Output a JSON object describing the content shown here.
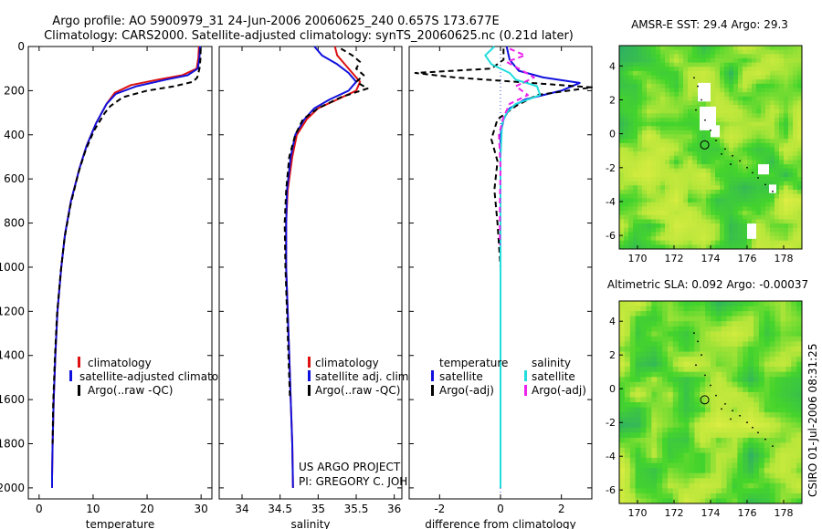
{
  "header": {
    "line1": "Argo profile: AO 5900979_31 24-Jun-2006 20060625_240 0.657S 173.677E",
    "line2": "Climatology: CARS2000. Satellite-adjusted climatology: synTS_20060625.nc (0.21d later)"
  },
  "credit": {
    "line1": "US ARGO PROJECT",
    "line2": "PI: GREGORY C. JOHNSON"
  },
  "side_stamp": "CSIRO 01-Jul-2006 08:31:25",
  "colors": {
    "climatology": "#dd1111",
    "satellite": "#1111dd",
    "argo": "#000000",
    "sal_satellite": "#22dddd",
    "sal_argo": "#ee22ee",
    "map_yellow": "#d8f03a",
    "map_green": "#3cd22c",
    "map_teal": "#2aa06a"
  },
  "chart_data": [
    {
      "type": "line",
      "id": "temperature",
      "xlabel": "temperature",
      "xlim": [
        -2,
        32
      ],
      "xticks": [
        0,
        10,
        20,
        30
      ],
      "ylim": [
        2050,
        0
      ],
      "yticks": [
        0,
        200,
        400,
        600,
        800,
        1000,
        1200,
        1400,
        1600,
        1800,
        2000
      ],
      "legend": [
        "climatology",
        "satellite-adjusted climatology",
        "Argo(..raw -QC)"
      ],
      "series": [
        {
          "name": "climatology",
          "style": "solid",
          "color": "#dd1111",
          "x": [
            29.6,
            29.5,
            29.2,
            26.5,
            22,
            17,
            14,
            12.5,
            10.5,
            8.8,
            7.5,
            5.9,
            4.8,
            4.1,
            3.4,
            3.0,
            2.7,
            2.5,
            2.4,
            2.4
          ],
          "y": [
            0,
            50,
            100,
            130,
            150,
            175,
            210,
            260,
            350,
            450,
            550,
            700,
            850,
            1000,
            1200,
            1400,
            1600,
            1800,
            1950,
            2000
          ]
        },
        {
          "name": "satellite-adjusted climatology",
          "style": "solid",
          "color": "#1111dd",
          "x": [
            29.8,
            29.7,
            29.4,
            27.5,
            23.5,
            18,
            14.2,
            12.5,
            10.5,
            8.8,
            7.5,
            5.9,
            4.8,
            4.1,
            3.4,
            3.0,
            2.7,
            2.5,
            2.4,
            2.4
          ],
          "y": [
            0,
            50,
            100,
            130,
            150,
            180,
            215,
            260,
            350,
            450,
            550,
            700,
            850,
            1000,
            1200,
            1400,
            1600,
            1800,
            1950,
            2000
          ]
        },
        {
          "name": "Argo(..raw -QC)",
          "style": "dashed",
          "color": "#000000",
          "x": [
            29.9,
            29.9,
            29.7,
            29.3,
            28.5,
            25,
            20,
            15.5,
            13.2,
            12.2,
            10.2,
            8.6,
            7.3,
            5.8,
            4.7,
            4.0,
            3.3,
            2.9,
            2.6,
            2.5
          ],
          "y": [
            10,
            50,
            100,
            140,
            160,
            180,
            200,
            230,
            270,
            300,
            380,
            470,
            570,
            720,
            870,
            1020,
            1220,
            1420,
            1620,
            1800
          ]
        }
      ]
    },
    {
      "type": "line",
      "id": "salinity",
      "xlabel": "salinity",
      "xlim": [
        33.7,
        36.1
      ],
      "xticks": [
        34,
        34.5,
        35,
        35.5,
        36
      ],
      "ylim": [
        2050,
        0
      ],
      "legend": [
        "climatology",
        "satellite adj. clim.",
        "Argo(..raw -QC)"
      ],
      "series": [
        {
          "name": "climatology",
          "style": "solid",
          "color": "#dd1111",
          "x": [
            35.22,
            35.25,
            35.35,
            35.45,
            35.55,
            35.5,
            35.25,
            35.0,
            34.85,
            34.72,
            34.66,
            34.6,
            34.58,
            34.58,
            34.6,
            34.62,
            34.64,
            34.66,
            34.67
          ],
          "y": [
            0,
            40,
            80,
            120,
            160,
            200,
            240,
            280,
            330,
            400,
            500,
            650,
            800,
            1000,
            1200,
            1400,
            1600,
            1800,
            2000
          ]
        },
        {
          "name": "satellite adj. clim.",
          "style": "solid",
          "color": "#1111dd",
          "x": [
            34.95,
            35.05,
            35.25,
            35.4,
            35.5,
            35.4,
            35.15,
            34.95,
            34.82,
            34.7,
            34.64,
            34.59,
            34.58,
            34.58,
            34.6,
            34.62,
            34.64,
            34.66,
            34.67
          ],
          "y": [
            0,
            40,
            80,
            120,
            160,
            200,
            240,
            280,
            330,
            400,
            500,
            650,
            800,
            1000,
            1200,
            1400,
            1600,
            1800,
            2000
          ]
        },
        {
          "name": "Argo(..raw -QC)",
          "style": "dashed",
          "color": "#000000",
          "x": [
            35.3,
            35.45,
            35.55,
            35.5,
            35.6,
            35.5,
            35.65,
            35.3,
            35.0,
            34.8,
            34.7,
            34.62,
            34.58,
            34.56,
            34.57,
            34.59,
            34.61,
            34.63
          ],
          "y": [
            10,
            40,
            70,
            100,
            130,
            160,
            190,
            230,
            280,
            330,
            400,
            500,
            650,
            800,
            1000,
            1200,
            1400,
            1600
          ]
        }
      ]
    },
    {
      "type": "line",
      "id": "difference",
      "xlabel": "difference from climatology",
      "xlim": [
        -3,
        3
      ],
      "xticks": [
        -2,
        0,
        2
      ],
      "ylim": [
        2050,
        0
      ],
      "legend_headers": [
        "temperature",
        "salinity"
      ],
      "legend": [
        "satellite",
        "Argo(-adj)",
        "satellite",
        "Argo(-adj)"
      ],
      "series": [
        {
          "name": "satellite",
          "group": "temperature",
          "style": "solid",
          "color": "#1111dd",
          "x": [
            0.2,
            0.3,
            0.6,
            1.4,
            2.6,
            2.0,
            0.8,
            0.3,
            0.1,
            0.0,
            0.0,
            0.0,
            0.0,
            0.0,
            0.0
          ],
          "y": [
            0,
            60,
            110,
            140,
            165,
            200,
            240,
            280,
            330,
            400,
            600,
            800,
            1000,
            1500,
            2000
          ]
        },
        {
          "name": "Argo(-adj)",
          "group": "temperature",
          "style": "dashed",
          "color": "#000000",
          "x": [
            0.1,
            0.1,
            -0.3,
            -2.8,
            -1.5,
            1.0,
            3.0,
            1.2,
            0.5,
            -0.1,
            -0.3,
            -0.1,
            -0.2,
            -0.1,
            0.0
          ],
          "y": [
            10,
            60,
            100,
            120,
            140,
            165,
            185,
            220,
            270,
            330,
            420,
            520,
            650,
            800,
            1000
          ]
        },
        {
          "name": "satellite",
          "group": "salinity",
          "style": "solid",
          "color": "#22dddd",
          "x": [
            -0.2,
            -0.5,
            -0.3,
            0.3,
            0.5,
            1.2,
            1.3,
            0.5,
            0.2,
            0.05,
            0.0,
            0.0,
            0.0,
            0.0,
            0.0
          ],
          "y": [
            0,
            40,
            80,
            120,
            150,
            180,
            220,
            260,
            300,
            350,
            500,
            800,
            1200,
            1600,
            2000
          ]
        },
        {
          "name": "Argo(-adj)",
          "group": "salinity",
          "style": "dashed",
          "color": "#ee22ee",
          "x": [
            0.3,
            0.8,
            0.2,
            0.6,
            1.1,
            0.5,
            0.9,
            0.3,
            0.1,
            -0.05,
            0.0,
            -0.02,
            -0.02
          ],
          "y": [
            10,
            40,
            70,
            100,
            140,
            180,
            220,
            260,
            320,
            400,
            550,
            700,
            900
          ]
        }
      ]
    },
    {
      "type": "heatmap",
      "id": "sst-map",
      "title": "AMSR-E SST: 29.4  Argo: 29.3",
      "xlim": [
        169,
        179
      ],
      "xticks": [
        170,
        172,
        174,
        176,
        178
      ],
      "ylim": [
        -6.8,
        5.2
      ],
      "yticks": [
        -6,
        -4,
        -2,
        0,
        2,
        4
      ],
      "float_position": [
        173.677,
        -0.657
      ]
    },
    {
      "type": "heatmap",
      "id": "sla-map",
      "title": "Altimetric SLA: 0.092  Argo: -0.00037",
      "xlim": [
        169,
        179
      ],
      "xticks": [
        170,
        172,
        174,
        176,
        178
      ],
      "ylim": [
        -6.8,
        5.2
      ],
      "yticks": [
        -6,
        -4,
        -2,
        0,
        2,
        4
      ],
      "float_position": [
        173.677,
        -0.657
      ]
    }
  ]
}
